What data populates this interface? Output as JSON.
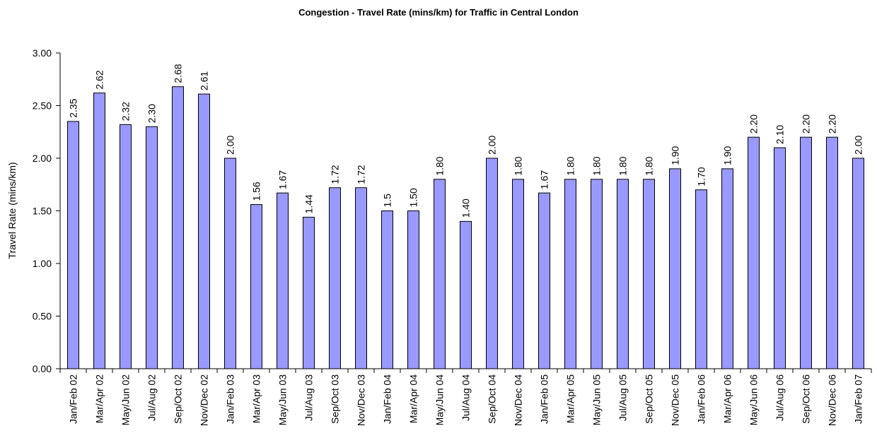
{
  "chart_data": {
    "type": "bar",
    "title": "Congestion - Travel Rate (mins/km) for Traffic in Central London",
    "y_label": "Travel Rate (mins/km)",
    "categories": [
      "Jan/Feb 02",
      "Mar/Apr 02",
      "May/Jun 02",
      "Jul/Aug 02",
      "Sep/Oct 02",
      "Nov/Dec 02",
      "Jan/Feb 03",
      "Mar/Apr 03",
      "May/Jun 03",
      "Jul/Aug 03",
      "Sep/Oct 03",
      "Nov/Dec 03",
      "Jan/Feb 04",
      "Mar/Apr 04",
      "May/Jun 04",
      "Jul/Aug 04",
      "Sep/Oct 04",
      "Nov/Dec 04",
      "Jan/Feb 05",
      "Mar/Apr 05",
      "May/Jun 05",
      "Jul/Aug 05",
      "Sep/Oct 05",
      "Nov/Dec 05",
      "Jan/Feb 06",
      "Mar/Apr 06",
      "May/Jun 06",
      "Jul/Aug 06",
      "Sep/Oct 06",
      "Nov/Dec 06",
      "Jan/Feb 07"
    ],
    "values": [
      2.35,
      2.62,
      2.32,
      2.3,
      2.68,
      2.61,
      2.0,
      1.56,
      1.67,
      1.44,
      1.72,
      1.72,
      1.5,
      1.5,
      1.8,
      1.4,
      2.0,
      1.8,
      1.67,
      1.8,
      1.8,
      1.8,
      1.8,
      1.9,
      1.7,
      1.9,
      2.2,
      2.1,
      2.2,
      2.2,
      2.0
    ],
    "value_labels": [
      "2.35",
      "2.62",
      "2.32",
      "2.30",
      "2.68",
      "2.61",
      "2.00",
      "1.56",
      "1.67",
      "1.44",
      "1.72",
      "1.72",
      "1.5",
      "1.50",
      "1.80",
      "1.40",
      "2.00",
      "1.80",
      "1.67",
      "1.80",
      "1.80",
      "1.80",
      "1.80",
      "1.90",
      "1.70",
      "1.90",
      "2.20",
      "2.10",
      "2.20",
      "2.20",
      "2.00"
    ],
    "color": "#9999ff",
    "ylim": [
      0,
      3
    ],
    "yticks": [
      {
        "value": 0,
        "label": "0.00"
      },
      {
        "value": 0.5,
        "label": "0.50"
      },
      {
        "value": 1,
        "label": "1.00"
      },
      {
        "value": 1.5,
        "label": "1.50"
      },
      {
        "value": 2,
        "label": "2.00"
      },
      {
        "value": 2.5,
        "label": "2.50"
      },
      {
        "value": 3,
        "label": "3.00"
      }
    ],
    "grid": false
  }
}
